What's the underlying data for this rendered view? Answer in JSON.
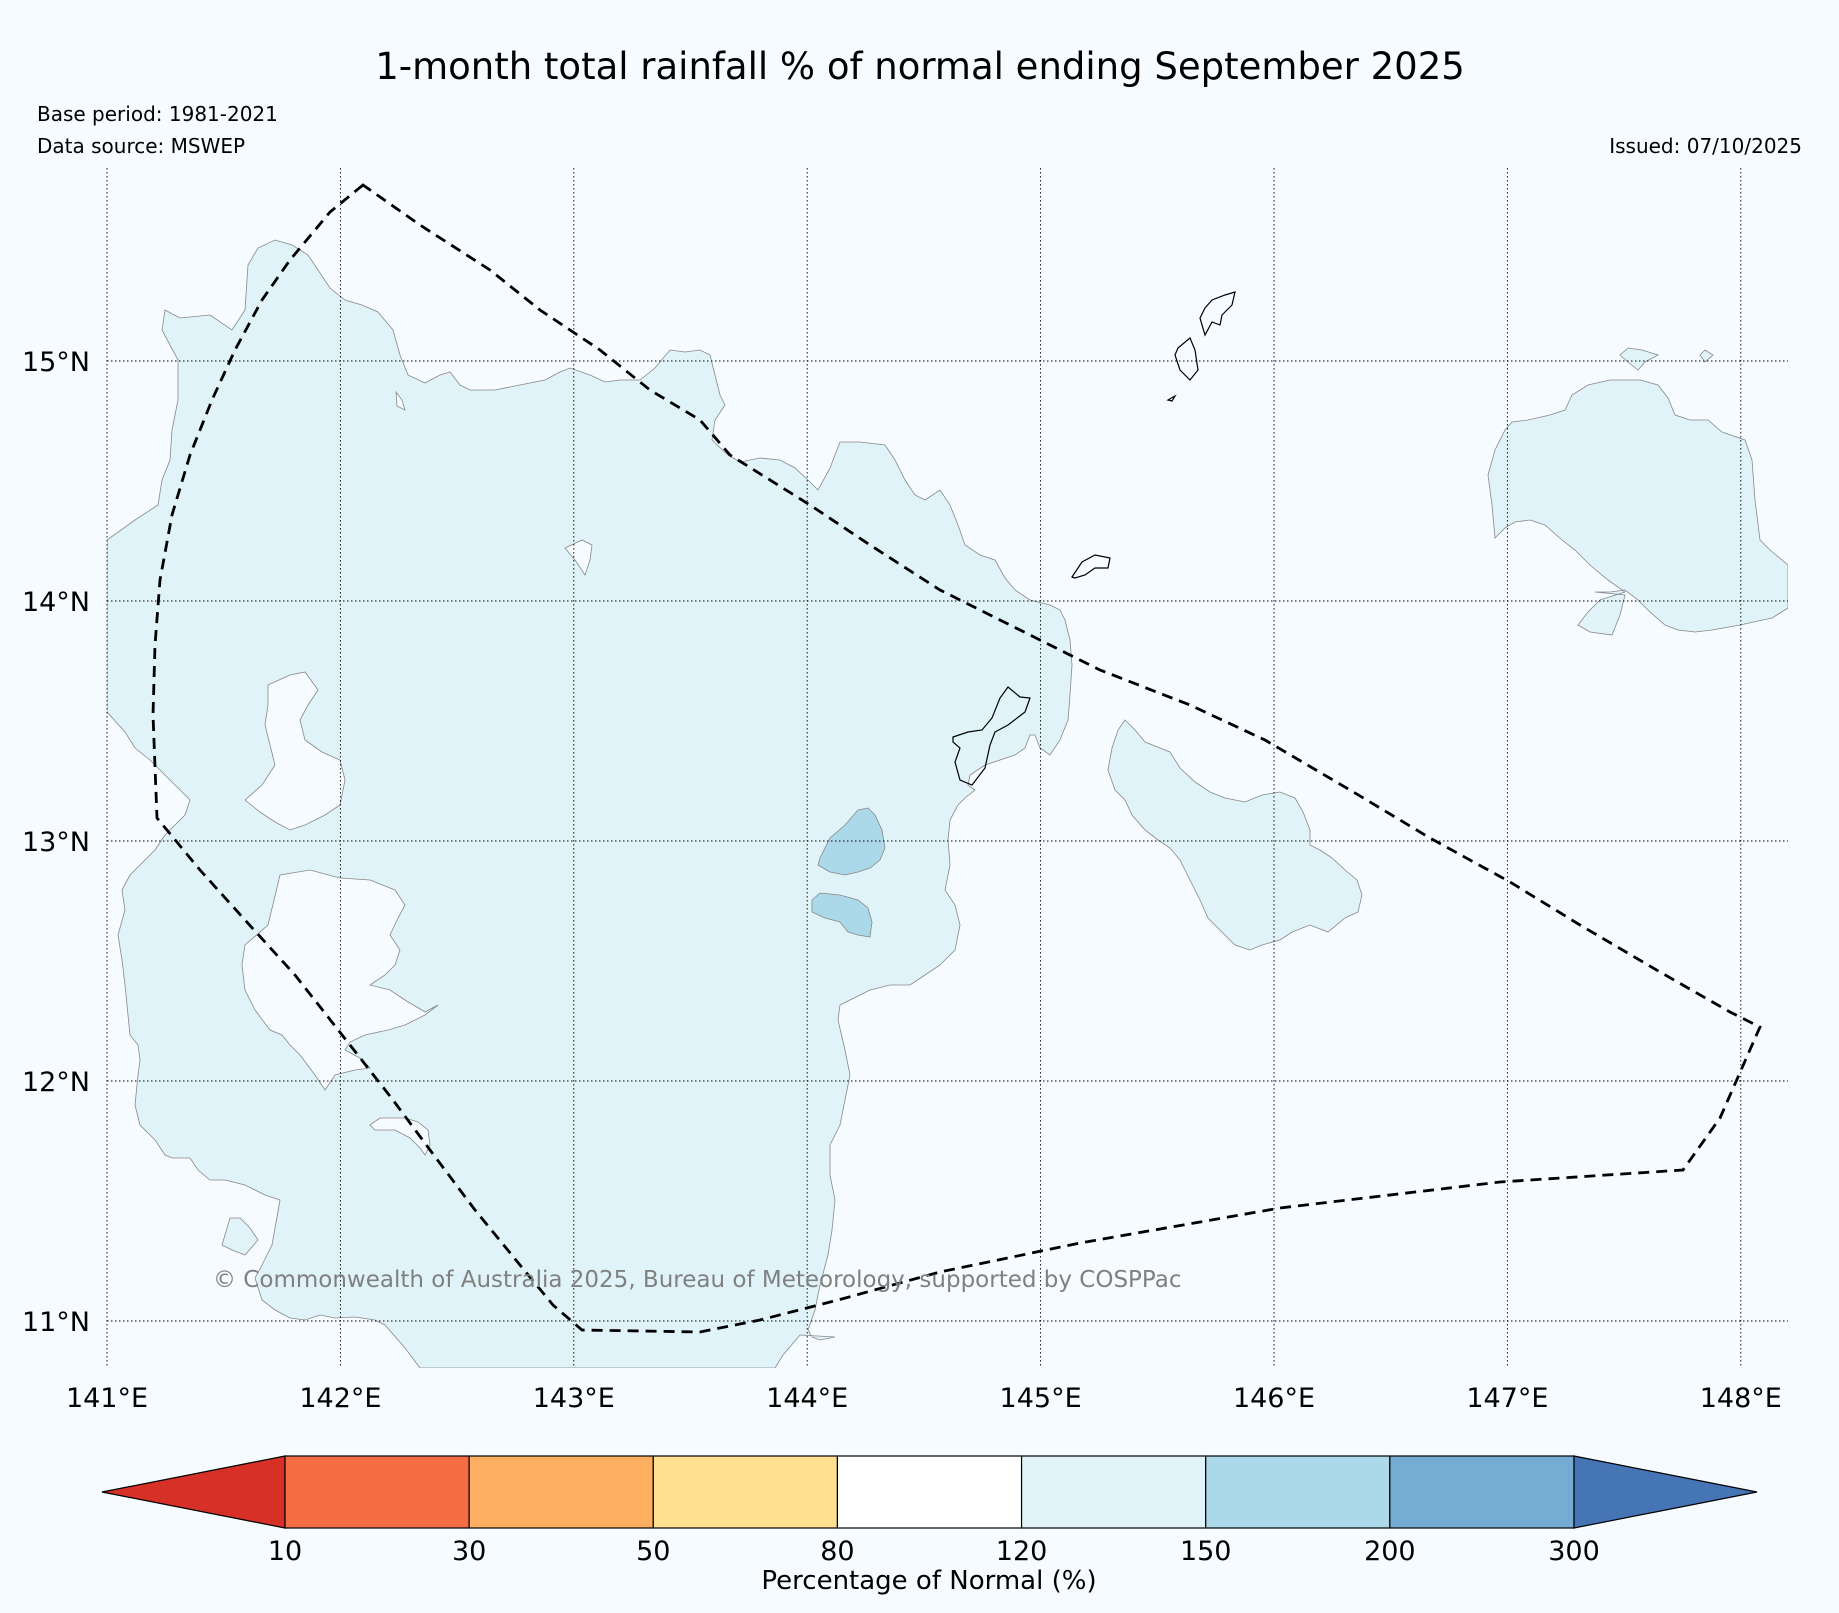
{
  "title": "1-month total rainfall % of normal ending September 2025",
  "base_period": "Base period: 1981-2021",
  "data_source": "Data source: MSWEP",
  "issued": "Issued: 07/10/2025",
  "copyright": "© Commonwealth of Australia 2025, Bureau of Meteorology, supported by COSPPac",
  "map": {
    "lon_range": [
      141,
      148.2
    ],
    "lat_range": [
      10.8,
      15.8
    ],
    "lon_ticks": [
      {
        "value": 141,
        "label": "141°E"
      },
      {
        "value": 142,
        "label": "142°E"
      },
      {
        "value": 143,
        "label": "143°E"
      },
      {
        "value": 144,
        "label": "144°E"
      },
      {
        "value": 145,
        "label": "145°E"
      },
      {
        "value": 146,
        "label": "146°E"
      },
      {
        "value": 147,
        "label": "147°E"
      },
      {
        "value": 148,
        "label": "148°E"
      }
    ],
    "lat_ticks": [
      {
        "value": 15,
        "label": "15°N"
      },
      {
        "value": 14,
        "label": "14°N"
      },
      {
        "value": 13,
        "label": "13°N"
      },
      {
        "value": 12,
        "label": "12°N"
      },
      {
        "value": 11,
        "label": "11°N"
      }
    ]
  },
  "colorbar": {
    "label": "Percentage of Normal (%)",
    "ticks": [
      "10",
      "30",
      "50",
      "80",
      "120",
      "150",
      "200",
      "300"
    ],
    "colors": {
      "below_10": "#d73027",
      "10_30": "#f46d43",
      "30_50": "#fdae61",
      "50_80": "#fee090",
      "80_120": "#ffffff",
      "120_150": "#e0f3f8",
      "150_200": "#abd9e9",
      "200_300": "#74add1",
      "above_300": "#4575b4"
    }
  }
}
